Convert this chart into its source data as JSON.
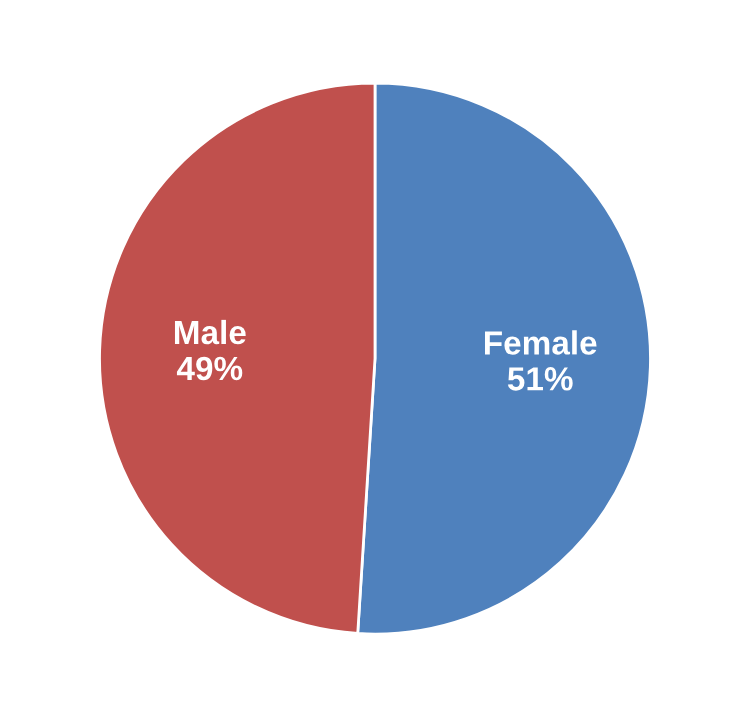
{
  "chart_data": {
    "type": "pie",
    "categories": [
      "Female",
      "Male"
    ],
    "values": [
      51,
      49
    ],
    "value_labels": [
      "51%",
      "49%"
    ],
    "colors": [
      "#4f81bd",
      "#c0504d"
    ],
    "legend": false
  }
}
